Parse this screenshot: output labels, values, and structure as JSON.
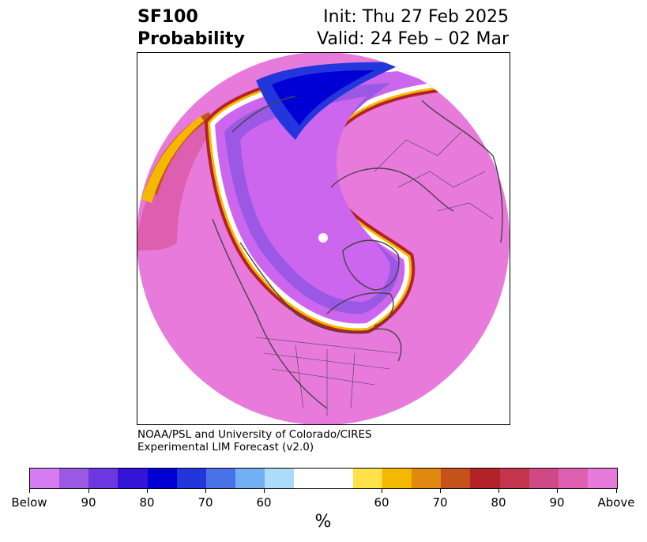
{
  "title": {
    "left_line1": "SF100",
    "left_line2": "Probability",
    "right_line1": "Init: Thu 27 Feb 2025",
    "right_line2": "Valid: 24 Feb – 02 Mar"
  },
  "credit": {
    "line1": "NOAA/PSL and University of Colorado/CIRES",
    "line2": "Experimental LIM Forecast (v2.0)"
  },
  "colorbar": {
    "segments": [
      "#d57cf0",
      "#9b58e4",
      "#6d38e0",
      "#3514d9",
      "#0000d4",
      "#2236dc",
      "#4a72e8",
      "#72b0f4",
      "#acdcfa",
      "#ffffff",
      "#ffffff",
      "#ffe24a",
      "#f5b800",
      "#e08810",
      "#c4521a",
      "#b22228",
      "#c2354c",
      "#cf4a84",
      "#de5fb0",
      "#e87adc"
    ],
    "tick_labels": [
      "Below",
      "90",
      "80",
      "70",
      "60",
      "60",
      "70",
      "80",
      "90",
      "Above"
    ],
    "unit": "%"
  },
  "map": {
    "projection": "polar-stereographic-north",
    "colors": {
      "above": "#e87adc",
      "below": "#cc66ee",
      "coast": "#444444"
    }
  }
}
